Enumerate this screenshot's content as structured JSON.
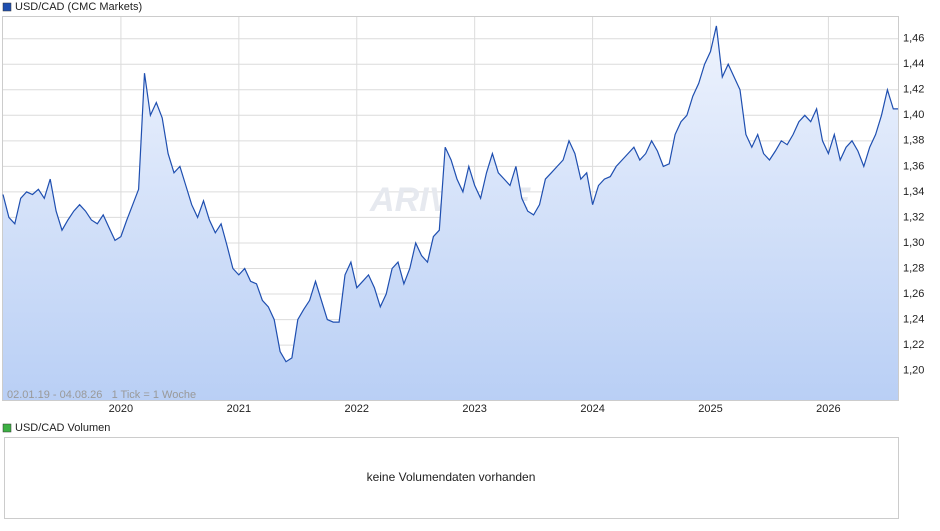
{
  "chart_data": {
    "type": "line",
    "title": "USD/CAD (CMC Markets)",
    "range_note": "02.01.19 - 04.08.26   1 Tick = 1 Woche",
    "watermark": "ARIVA.DE",
    "x": [
      2019.0,
      2019.05,
      2019.1,
      2019.15,
      2019.2,
      2019.25,
      2019.3,
      2019.35,
      2019.4,
      2019.45,
      2019.5,
      2019.55,
      2019.6,
      2019.65,
      2019.7,
      2019.75,
      2019.8,
      2019.85,
      2019.9,
      2019.95,
      2020.0,
      2020.05,
      2020.1,
      2020.15,
      2020.2,
      2020.25,
      2020.3,
      2020.35,
      2020.4,
      2020.45,
      2020.5,
      2020.55,
      2020.6,
      2020.65,
      2020.7,
      2020.75,
      2020.8,
      2020.85,
      2020.9,
      2020.95,
      2021.0,
      2021.05,
      2021.1,
      2021.15,
      2021.2,
      2021.25,
      2021.3,
      2021.35,
      2021.4,
      2021.45,
      2021.5,
      2021.55,
      2021.6,
      2021.65,
      2021.7,
      2021.75,
      2021.8,
      2021.85,
      2021.9,
      2021.95,
      2022.0,
      2022.05,
      2022.1,
      2022.15,
      2022.2,
      2022.25,
      2022.3,
      2022.35,
      2022.4,
      2022.45,
      2022.5,
      2022.55,
      2022.6,
      2022.65,
      2022.7,
      2022.75,
      2022.8,
      2022.85,
      2022.9,
      2022.95,
      2023.0,
      2023.05,
      2023.1,
      2023.15,
      2023.2,
      2023.25,
      2023.3,
      2023.35,
      2023.4,
      2023.45,
      2023.5,
      2023.55,
      2023.6,
      2023.65,
      2023.7,
      2023.75,
      2023.8,
      2023.85,
      2023.9,
      2023.95,
      2024.0,
      2024.05,
      2024.1,
      2024.15,
      2024.2,
      2024.25,
      2024.3,
      2024.35,
      2024.4,
      2024.45,
      2024.5,
      2024.55,
      2024.6,
      2024.65,
      2024.7,
      2024.75,
      2024.8,
      2024.85,
      2024.9,
      2024.95,
      2025.0,
      2025.05,
      2025.1,
      2025.15,
      2025.2,
      2025.25,
      2025.3,
      2025.35,
      2025.4,
      2025.45,
      2025.5,
      2025.55,
      2025.6,
      2025.65,
      2025.7,
      2025.75,
      2025.8,
      2025.85,
      2025.9,
      2025.95,
      2026.0,
      2026.05,
      2026.1,
      2026.15,
      2026.2,
      2026.25,
      2026.3,
      2026.35,
      2026.4,
      2026.45,
      2026.5,
      2026.55,
      2026.59
    ],
    "series": [
      {
        "name": "USD/CAD",
        "color": "#1f4fb0",
        "values": [
          1.338,
          1.32,
          1.315,
          1.335,
          1.34,
          1.338,
          1.342,
          1.335,
          1.35,
          1.325,
          1.31,
          1.318,
          1.325,
          1.33,
          1.325,
          1.318,
          1.315,
          1.322,
          1.312,
          1.302,
          1.305,
          1.318,
          1.33,
          1.342,
          1.433,
          1.4,
          1.41,
          1.398,
          1.37,
          1.355,
          1.36,
          1.345,
          1.33,
          1.32,
          1.333,
          1.318,
          1.308,
          1.315,
          1.298,
          1.28,
          1.275,
          1.28,
          1.27,
          1.268,
          1.255,
          1.25,
          1.24,
          1.215,
          1.207,
          1.21,
          1.24,
          1.248,
          1.255,
          1.27,
          1.255,
          1.24,
          1.238,
          1.238,
          1.275,
          1.285,
          1.265,
          1.27,
          1.275,
          1.265,
          1.25,
          1.26,
          1.28,
          1.285,
          1.268,
          1.28,
          1.3,
          1.29,
          1.285,
          1.305,
          1.31,
          1.375,
          1.365,
          1.35,
          1.34,
          1.36,
          1.345,
          1.335,
          1.355,
          1.37,
          1.355,
          1.35,
          1.345,
          1.36,
          1.335,
          1.325,
          1.322,
          1.33,
          1.35,
          1.355,
          1.36,
          1.365,
          1.38,
          1.37,
          1.35,
          1.355,
          1.33,
          1.345,
          1.35,
          1.352,
          1.36,
          1.365,
          1.37,
          1.375,
          1.365,
          1.37,
          1.38,
          1.372,
          1.36,
          1.362,
          1.385,
          1.395,
          1.4,
          1.415,
          1.425,
          1.44,
          1.45,
          1.47,
          1.43,
          1.44,
          1.43,
          1.42,
          1.385,
          1.375,
          1.385,
          1.37,
          1.365,
          1.372,
          1.38,
          1.377,
          1.385,
          1.395,
          1.4,
          1.395,
          1.405,
          1.38,
          1.37,
          1.385,
          1.365,
          1.375,
          1.38,
          1.372,
          1.36,
          1.375,
          1.385,
          1.4,
          1.42,
          1.405,
          1.405
        ]
      }
    ],
    "xlim": [
      2019.0,
      2026.59
    ],
    "xticks": [
      2020,
      2021,
      2022,
      2023,
      2024,
      2025,
      2026
    ],
    "ylim": [
      1.177,
      1.477
    ],
    "yticks": [
      {
        "value": 1.2,
        "label": "1,20"
      },
      {
        "value": 1.22,
        "label": "1,22"
      },
      {
        "value": 1.24,
        "label": "1,24"
      },
      {
        "value": 1.26,
        "label": "1,26"
      },
      {
        "value": 1.28,
        "label": "1,28"
      },
      {
        "value": 1.3,
        "label": "1,30"
      },
      {
        "value": 1.32,
        "label": "1,32"
      },
      {
        "value": 1.34,
        "label": "1,34"
      },
      {
        "value": 1.36,
        "label": "1,36"
      },
      {
        "value": 1.38,
        "label": "1,38"
      },
      {
        "value": 1.4,
        "label": "1,40"
      },
      {
        "value": 1.42,
        "label": "1,42"
      },
      {
        "value": 1.44,
        "label": "1,44"
      },
      {
        "value": 1.46,
        "label": "1,46"
      }
    ],
    "grid": true,
    "volume": {
      "title": "USD/CAD Volumen",
      "color": "#3cb043",
      "message": "keine Volumendaten vorhanden"
    }
  }
}
